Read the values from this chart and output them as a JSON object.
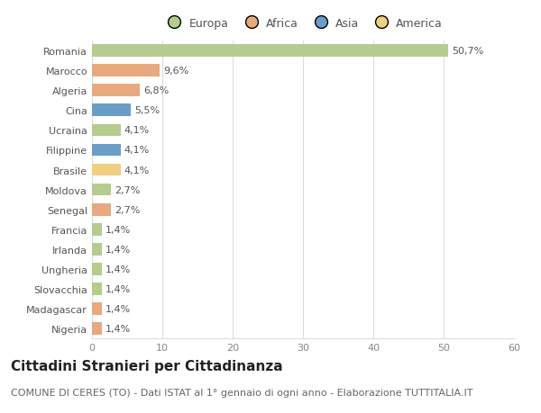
{
  "countries": [
    "Romania",
    "Marocco",
    "Algeria",
    "Cina",
    "Ucraina",
    "Filippine",
    "Brasile",
    "Moldova",
    "Senegal",
    "Francia",
    "Irlanda",
    "Ungheria",
    "Slovacchia",
    "Madagascar",
    "Nigeria"
  ],
  "values": [
    50.7,
    9.6,
    6.8,
    5.5,
    4.1,
    4.1,
    4.1,
    2.7,
    2.7,
    1.4,
    1.4,
    1.4,
    1.4,
    1.4,
    1.4
  ],
  "labels": [
    "50,7%",
    "9,6%",
    "6,8%",
    "5,5%",
    "4,1%",
    "4,1%",
    "4,1%",
    "2,7%",
    "2,7%",
    "1,4%",
    "1,4%",
    "1,4%",
    "1,4%",
    "1,4%",
    "1,4%"
  ],
  "colors": [
    "#b5cc8e",
    "#e8a97e",
    "#e8a97e",
    "#6b9ec7",
    "#b5cc8e",
    "#6b9ec7",
    "#f0d080",
    "#b5cc8e",
    "#e8a97e",
    "#b5cc8e",
    "#b5cc8e",
    "#b5cc8e",
    "#b5cc8e",
    "#e8a97e",
    "#e8a97e"
  ],
  "legend": [
    {
      "label": "Europa",
      "color": "#b5cc8e"
    },
    {
      "label": "Africa",
      "color": "#e8a97e"
    },
    {
      "label": "Asia",
      "color": "#6b9ec7"
    },
    {
      "label": "America",
      "color": "#f0d080"
    }
  ],
  "xlim": [
    0,
    60
  ],
  "xticks": [
    0,
    10,
    20,
    30,
    40,
    50,
    60
  ],
  "title": "Cittadini Stranieri per Cittadinanza",
  "subtitle": "COMUNE DI CERES (TO) - Dati ISTAT al 1° gennaio di ogni anno - Elaborazione TUTTITALIA.IT",
  "bg_color": "#ffffff",
  "grid_color": "#dddddd",
  "bar_height": 0.62,
  "title_fontsize": 11,
  "subtitle_fontsize": 8,
  "label_fontsize": 8,
  "tick_fontsize": 8,
  "legend_fontsize": 9
}
